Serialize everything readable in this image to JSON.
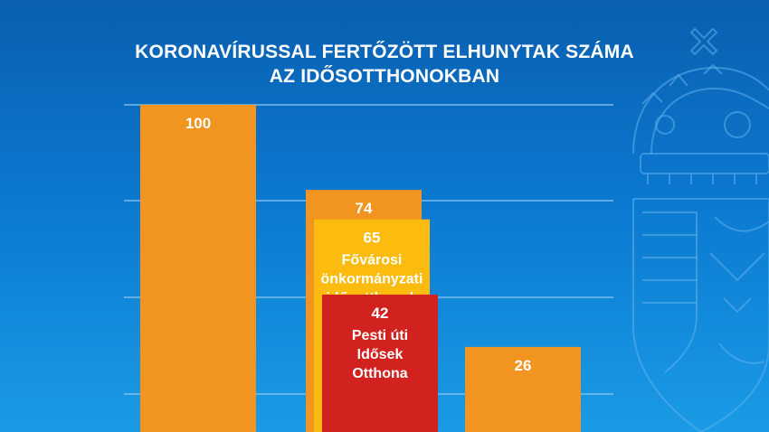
{
  "chart_data": {
    "type": "bar",
    "title": [
      "KORONAVÍRUSSAL FERTŐZÖTT ELHUNYTAK SZÁMA",
      "AZ IDŐSOTTHONOKBAN"
    ],
    "ylim": [
      0,
      117
    ],
    "grid": true,
    "colors": {
      "orange": "#f29420",
      "yellow": "#fbbb0f",
      "red": "#d2221f",
      "background": "#0b78cf"
    },
    "bars": [
      {
        "value": 100,
        "label": "100",
        "color": "#f29420",
        "group": 0,
        "layer": 0
      },
      {
        "value": 74,
        "label": "74",
        "color": "#f29420",
        "group": 1,
        "layer": 0
      },
      {
        "value": 65,
        "label": "65",
        "name": [
          "Fővárosi",
          "önkormányzati",
          "idősotthonok"
        ],
        "color": "#fbbb0f",
        "group": 1,
        "layer": 1
      },
      {
        "value": 42,
        "label": "42",
        "name": [
          "Pesti úti",
          "Idősek",
          "Otthona"
        ],
        "color": "#d2221f",
        "group": 1,
        "layer": 2
      },
      {
        "value": 26,
        "label": "26",
        "color": "#f29420",
        "group": 2,
        "layer": 0
      }
    ]
  }
}
